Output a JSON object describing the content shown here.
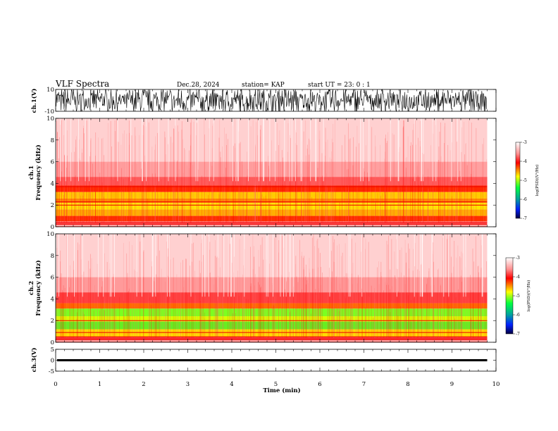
{
  "header": {
    "title": "VLF Spectra",
    "date": "Dec.28, 2024",
    "station": "station= KAP",
    "start": "start  UT  =   23: 0  : 1"
  },
  "colors": {
    "spectrogram": [
      "#ffffff",
      "#ff9a9a",
      "#ff0000",
      "#ffd700",
      "#ffff00",
      "#00ff33",
      "#00aa66",
      "#0033ff",
      "#000066"
    ],
    "trace": "#000000"
  },
  "chart_data": [
    {
      "type": "line",
      "name": "ch1-waveform",
      "ylabel": "ch.1(V)",
      "ylim": [
        -10,
        10
      ],
      "yticks": [
        "10",
        "-10"
      ],
      "xlim": [
        0,
        10
      ],
      "description_values": {
        "amplitude_range": [
          -10,
          10
        ],
        "behavior": "saturated noise"
      }
    },
    {
      "type": "heatmap",
      "name": "ch1-spectrogram",
      "ylabel": "ch.1\nFrequency  (kHz)",
      "ylim": [
        0,
        10
      ],
      "yticks": [
        "0",
        "2",
        "4",
        "6",
        "8",
        "10"
      ],
      "xlim": [
        0,
        9.8
      ],
      "intense_band_khz": [
        0.8,
        3.8
      ],
      "colorbar": {
        "label": "log(PSD)(V²/Hz)",
        "range": [
          -7,
          -3
        ],
        "ticks": [
          "-3",
          "-4",
          "-5",
          "-6",
          "-7"
        ]
      }
    },
    {
      "type": "heatmap",
      "name": "ch2-spectrogram",
      "ylabel": "ch.2\nFrequency  (kHz)",
      "ylim": [
        0,
        10
      ],
      "yticks": [
        "0",
        "2",
        "4",
        "6",
        "8",
        "10"
      ],
      "xlim": [
        0,
        9.8
      ],
      "intense_band_khz": [
        0.5,
        3.2
      ],
      "colorbar": {
        "label": "log(PSD)(V²/Hz)",
        "range": [
          -7,
          -3
        ],
        "ticks": [
          "-3",
          "-4",
          "-5",
          "-6",
          "-7"
        ]
      }
    },
    {
      "type": "line",
      "name": "ch3-waveform",
      "ylabel": "ch.3(V)",
      "ylim": [
        -5,
        5
      ],
      "yticks": [
        "5",
        "0",
        "-5"
      ],
      "xlim": [
        0,
        10
      ],
      "level_v": [
        -0.5,
        0.5
      ]
    }
  ],
  "xaxis": {
    "label": "Time  (min)",
    "ticks": [
      "0",
      "1",
      "2",
      "3",
      "4",
      "5",
      "6",
      "7",
      "8",
      "9",
      "10"
    ]
  }
}
